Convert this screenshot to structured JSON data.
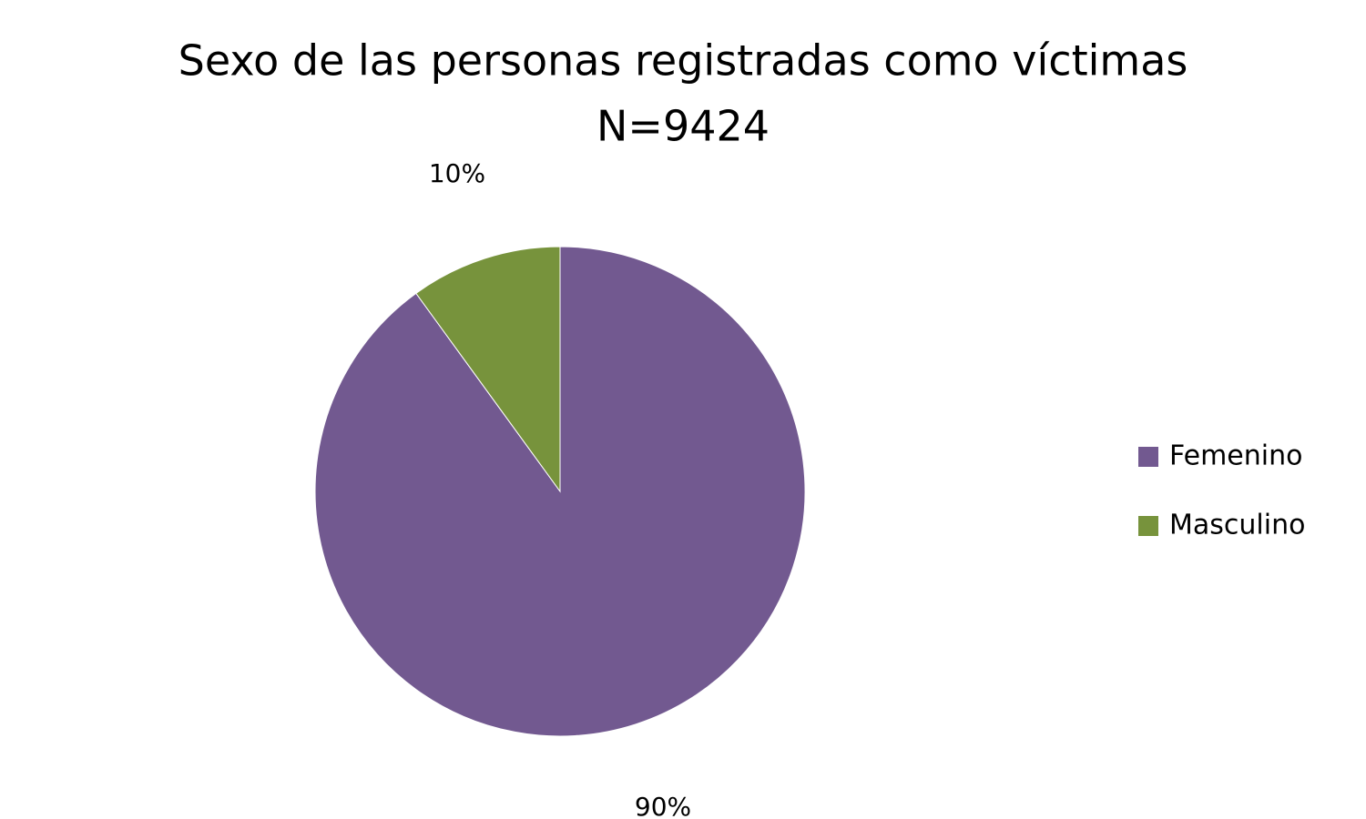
{
  "chart_data": {
    "type": "pie",
    "title": "Sexo de las personas registradas como víctimas",
    "subtitle": "N=9424",
    "categories": [
      "Femenino",
      "Masculino"
    ],
    "values": [
      90,
      10
    ],
    "value_labels": [
      "90%",
      "10%"
    ],
    "colors": [
      "#725990",
      "#77933c"
    ],
    "legend": "right"
  }
}
